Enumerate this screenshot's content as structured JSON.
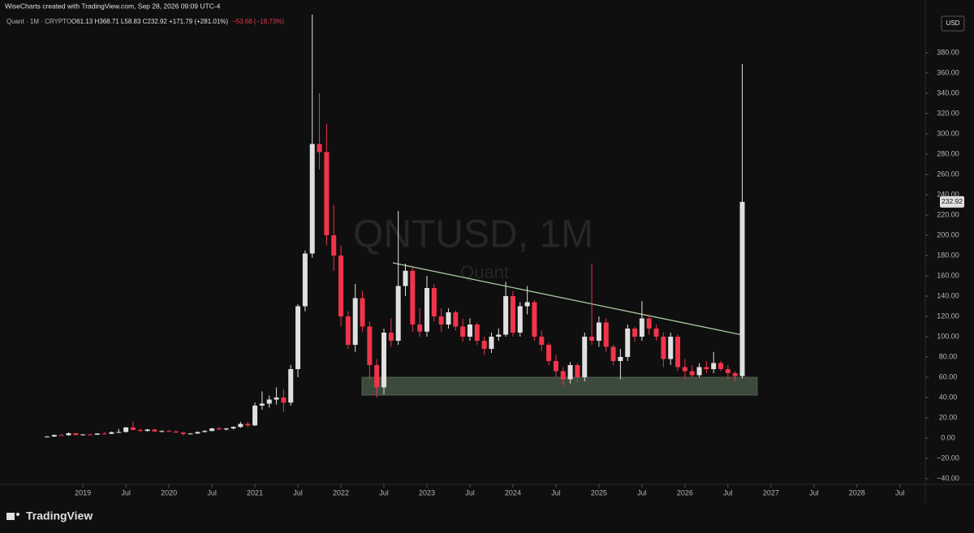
{
  "header": {
    "credit": "WiseCharts created with TradingView.com, Sep 28, 2026 09:09 UTC-4"
  },
  "chart_data": {
    "type": "candlestick",
    "legend_symbol": "Quant · 1M · CRYPTO",
    "legend_ohlc": "O61.13  H368.71  L58.83  C232.92  +171.79 (+281.01%)",
    "legend_change": "−53.68 (−18.73%)",
    "watermark": "QNTUSD, 1M",
    "watermark_sub": "Quant",
    "currency": "USD",
    "brand": "TradingView",
    "up_color": "#e0e0e0",
    "down_color": "#f0344a",
    "x": [
      "2018-08",
      "2018-09",
      "2018-10",
      "2018-11",
      "2018-12",
      "2019-01",
      "2019-02",
      "2019-03",
      "2019-04",
      "2019-05",
      "2019-06",
      "2019-07",
      "2019-08",
      "2019-09",
      "2019-10",
      "2019-11",
      "2019-12",
      "2020-01",
      "2020-02",
      "2020-03",
      "2020-04",
      "2020-05",
      "2020-06",
      "2020-07",
      "2020-08",
      "2020-09",
      "2020-10",
      "2020-11",
      "2020-12",
      "2021-01",
      "2021-02",
      "2021-03",
      "2021-04",
      "2021-05",
      "2021-06",
      "2021-07",
      "2021-08",
      "2021-09",
      "2021-10",
      "2021-11",
      "2021-12",
      "2022-01",
      "2022-02",
      "2022-03",
      "2022-04",
      "2022-05",
      "2022-06",
      "2022-07",
      "2022-08",
      "2022-09",
      "2022-10",
      "2022-11",
      "2022-12",
      "2023-01",
      "2023-02",
      "2023-03",
      "2023-04",
      "2023-05",
      "2023-06",
      "2023-07",
      "2023-08",
      "2023-09",
      "2023-10",
      "2023-11",
      "2023-12",
      "2024-01",
      "2024-02",
      "2024-03",
      "2024-04",
      "2024-05",
      "2024-06",
      "2024-07",
      "2024-08",
      "2024-09",
      "2024-10",
      "2024-11",
      "2024-12",
      "2025-01",
      "2025-02",
      "2025-03",
      "2025-04",
      "2025-05",
      "2025-06",
      "2025-07",
      "2025-08",
      "2025-09",
      "2025-10",
      "2025-11",
      "2025-12",
      "2026-01",
      "2026-02",
      "2026-03",
      "2026-04",
      "2026-05",
      "2026-06",
      "2026-07",
      "2026-08",
      "2026-09"
    ],
    "open": [
      1.2,
      1.5,
      3.0,
      2.8,
      4.8,
      3.0,
      3.6,
      3.3,
      4.5,
      4.2,
      5.8,
      6.0,
      10.5,
      8.0,
      7.0,
      8.5,
      6.5,
      7.0,
      6.5,
      5.5,
      4.0,
      4.5,
      6.0,
      7.0,
      9.5,
      8.5,
      9.5,
      11.0,
      14.0,
      12.5,
      32,
      34,
      38,
      40,
      35,
      68,
      130,
      182,
      290,
      282,
      200,
      180,
      120,
      92,
      138,
      110,
      72,
      50,
      104,
      96,
      150,
      165,
      112,
      105,
      148,
      120,
      112,
      124,
      110,
      100,
      112,
      96,
      88,
      100,
      102,
      140,
      104,
      130,
      134,
      100,
      92,
      76,
      66,
      58,
      72,
      60,
      100,
      96,
      114,
      90,
      76,
      80,
      108,
      100,
      118,
      108,
      100,
      78,
      100,
      70,
      66,
      62,
      70,
      68,
      74,
      68,
      64,
      61.13
    ],
    "high": [
      2.0,
      3.5,
      4.2,
      5.5,
      5.2,
      4.0,
      4.5,
      4.8,
      6.0,
      6.5,
      9.0,
      11.0,
      16.0,
      9.5,
      9.0,
      9.0,
      7.5,
      8.0,
      7.5,
      6.0,
      5.0,
      6.5,
      8.0,
      10.0,
      11.0,
      10.0,
      11.5,
      16.0,
      16.0,
      35,
      46,
      42,
      50,
      48,
      72,
      132,
      185,
      428,
      340,
      310,
      230,
      190,
      125,
      152,
      145,
      115,
      78,
      108,
      118,
      224,
      172,
      168,
      128,
      160,
      152,
      128,
      128,
      126,
      118,
      118,
      114,
      100,
      104,
      108,
      154,
      145,
      134,
      150,
      136,
      106,
      94,
      82,
      70,
      75,
      74,
      104,
      172,
      120,
      118,
      92,
      88,
      112,
      110,
      135,
      122,
      112,
      104,
      104,
      102,
      78,
      72,
      74,
      76,
      85,
      76,
      72,
      66,
      368.71
    ],
    "low": [
      0.9,
      1.2,
      2.5,
      2.4,
      2.6,
      2.5,
      3.0,
      3.1,
      4.0,
      4.0,
      5.0,
      5.5,
      7.5,
      6.0,
      6.5,
      6.0,
      5.5,
      6.0,
      5.0,
      2.5,
      3.5,
      4.2,
      5.5,
      6.8,
      8.0,
      7.5,
      8.5,
      10.0,
      10.5,
      12,
      28,
      30,
      33,
      26,
      32,
      60,
      125,
      178,
      265,
      190,
      165,
      110,
      88,
      85,
      105,
      58,
      40,
      43,
      90,
      92,
      140,
      105,
      100,
      100,
      115,
      105,
      108,
      106,
      95,
      96,
      92,
      82,
      84,
      96,
      100,
      100,
      100,
      122,
      96,
      86,
      72,
      60,
      52,
      54,
      55,
      56,
      92,
      90,
      85,
      72,
      58,
      76,
      95,
      96,
      102,
      96,
      70,
      72,
      66,
      58,
      60,
      60,
      64,
      64,
      66,
      58,
      56,
      58.83
    ],
    "close": [
      1.5,
      3.0,
      2.8,
      4.8,
      3.0,
      3.6,
      3.3,
      4.5,
      4.2,
      5.8,
      6.0,
      10.5,
      8.0,
      7.0,
      8.5,
      6.5,
      7.0,
      6.5,
      5.5,
      4.0,
      4.5,
      6.0,
      7.0,
      9.5,
      8.5,
      9.5,
      11.0,
      14.0,
      12.5,
      32,
      34,
      38,
      40,
      35,
      68,
      130,
      182,
      290,
      282,
      200,
      180,
      120,
      92,
      138,
      110,
      72,
      50,
      104,
      96,
      150,
      165,
      112,
      105,
      148,
      120,
      112,
      124,
      110,
      100,
      112,
      96,
      88,
      100,
      102,
      140,
      104,
      130,
      134,
      100,
      92,
      76,
      66,
      58,
      72,
      60,
      100,
      96,
      114,
      90,
      76,
      80,
      108,
      100,
      118,
      108,
      100,
      78,
      100,
      70,
      66,
      62,
      70,
      68,
      74,
      68,
      64,
      61.13,
      232.92
    ],
    "ylim": [
      -45.6,
      417.6
    ],
    "yticks": [
      {
        "value": -40,
        "label": "−40.00"
      },
      {
        "value": -20,
        "label": "−20.00"
      },
      {
        "value": 0,
        "label": "0.00"
      },
      {
        "value": 20,
        "label": "20.00"
      },
      {
        "value": 40,
        "label": "40.00"
      },
      {
        "value": 60,
        "label": "60.00"
      },
      {
        "value": 80,
        "label": "80.00"
      },
      {
        "value": 100,
        "label": "100.00"
      },
      {
        "value": 120,
        "label": "120.00"
      },
      {
        "value": 140,
        "label": "140.00"
      },
      {
        "value": 160,
        "label": "160.00"
      },
      {
        "value": 180,
        "label": "180.00"
      },
      {
        "value": 200,
        "label": "200.00"
      },
      {
        "value": 220,
        "label": "220.00"
      },
      {
        "value": 240,
        "label": "240.00"
      },
      {
        "value": 260,
        "label": "260.00"
      },
      {
        "value": 280,
        "label": "280.00"
      },
      {
        "value": 300,
        "label": "300.00"
      },
      {
        "value": 320,
        "label": "320.00"
      },
      {
        "value": 340,
        "label": "340.00"
      },
      {
        "value": 360,
        "label": "360.00"
      },
      {
        "value": 380,
        "label": "380.00"
      }
    ],
    "xticks": [
      {
        "value": "2019-01",
        "label": "2019"
      },
      {
        "value": "2019-07",
        "label": "Jul"
      },
      {
        "value": "2020-01",
        "label": "2020"
      },
      {
        "value": "2020-07",
        "label": "Jul"
      },
      {
        "value": "2021-01",
        "label": "2021"
      },
      {
        "value": "2021-07",
        "label": "Jul"
      },
      {
        "value": "2022-01",
        "label": "2022"
      },
      {
        "value": "2022-07",
        "label": "Jul"
      },
      {
        "value": "2023-01",
        "label": "2023"
      },
      {
        "value": "2023-07",
        "label": "Jul"
      },
      {
        "value": "2024-01",
        "label": "2024"
      },
      {
        "value": "2024-07",
        "label": "Jul"
      },
      {
        "value": "2025-01",
        "label": "2025"
      },
      {
        "value": "2025-07",
        "label": "Jul"
      },
      {
        "value": "2026-01",
        "label": "2026"
      },
      {
        "value": "2026-07",
        "label": "Jul"
      },
      {
        "value": "2027-01",
        "label": "2027"
      },
      {
        "value": "2027-07",
        "label": "Jul"
      },
      {
        "value": "2028-01",
        "label": "2028"
      },
      {
        "value": "2028-07",
        "label": "Jul"
      }
    ]
  }
}
